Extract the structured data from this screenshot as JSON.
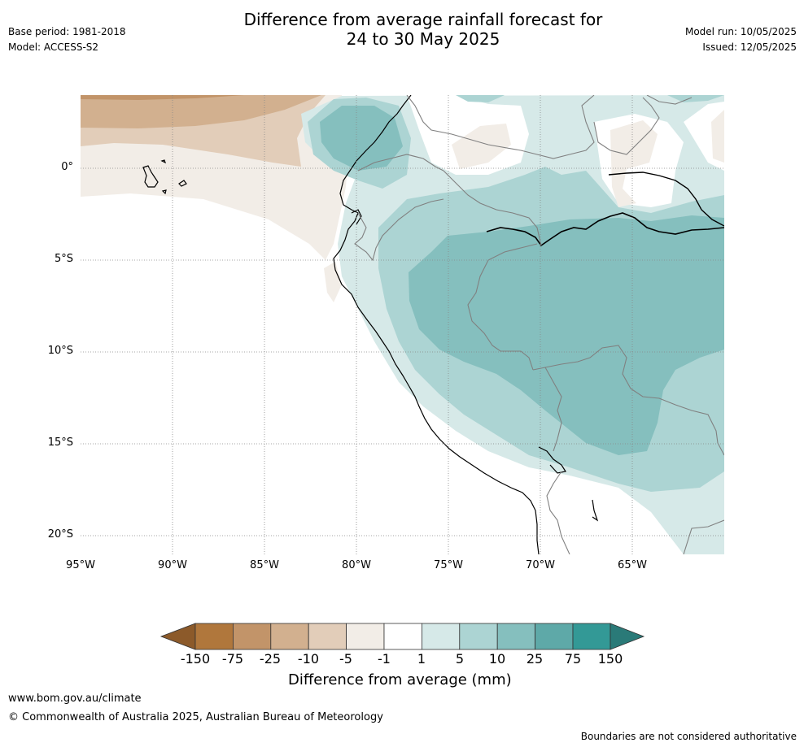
{
  "header": {
    "title_line1": "Difference from average rainfall forecast for",
    "title_line2": "24 to 30 May 2025",
    "base_period": "Base period: 1981-2018",
    "model": "Model: ACCESS-S2",
    "model_run": "Model run: 10/05/2025",
    "issued": "Issued: 12/05/2025"
  },
  "map": {
    "lat_labels": [
      "0°",
      "5°S",
      "10°S",
      "15°S",
      "20°S"
    ],
    "lon_labels": [
      "95°W",
      "90°W",
      "85°W",
      "80°W",
      "75°W",
      "70°W",
      "65°W"
    ],
    "colors": {
      "ocean_bg": "#ffffff",
      "coast": "#000000",
      "border": "#808080",
      "grid": "#888888"
    }
  },
  "colorbar": {
    "title": "Difference from average (mm)",
    "tick_labels": [
      "-150",
      "-75",
      "-25",
      "-10",
      "-5",
      "-1",
      "1",
      "5",
      "10",
      "25",
      "75",
      "150"
    ],
    "colors": [
      "#8c5a2a",
      "#b0773c",
      "#c29469",
      "#d2b08f",
      "#e2cdb9",
      "#f2ede7",
      "#ffffff",
      "#d6e9e8",
      "#acd4d3",
      "#85bfbe",
      "#5ea9a8",
      "#339996",
      "#2a7a78"
    ]
  },
  "footer": {
    "website": "www.bom.gov.au/climate",
    "copyright": "© Commonwealth of Australia 2025, Australian Bureau of Meteorology",
    "disclaimer": "Boundaries are not considered authoritative"
  }
}
